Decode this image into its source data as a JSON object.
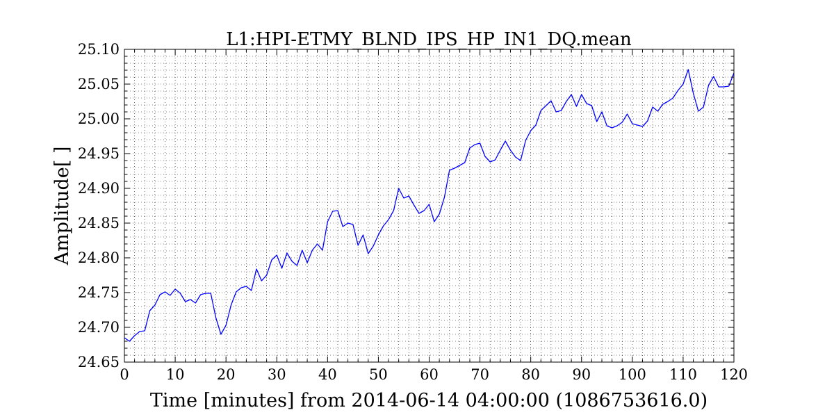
{
  "chart_data": {
    "type": "line",
    "title": "L1:HPI-ETMY_BLND_IPS_HP_IN1_DQ.mean",
    "xlabel": "Time [minutes] from 2014-06-14 04:00:00 (1086753616.0)",
    "ylabel": "Amplitude[ ]",
    "xlim": [
      0,
      120
    ],
    "ylim": [
      24.65,
      25.1
    ],
    "xticks": [
      "0",
      "10",
      "20",
      "30",
      "40",
      "50",
      "60",
      "70",
      "80",
      "90",
      "100",
      "110",
      "120"
    ],
    "yticks": [
      "24.65",
      "24.70",
      "24.75",
      "24.80",
      "24.85",
      "24.90",
      "24.95",
      "25.00",
      "25.05",
      "25.10"
    ],
    "grid": true,
    "line_color": "#0000ff",
    "series": [
      {
        "x": [
          0,
          1,
          2,
          3,
          4,
          5,
          6,
          7,
          8,
          9,
          10,
          11,
          12,
          13,
          14,
          15,
          16,
          17,
          18,
          19,
          20,
          21,
          22,
          23,
          24,
          25,
          26,
          27,
          28,
          29,
          30,
          31,
          32,
          33,
          34,
          35,
          36,
          37,
          38,
          39,
          40,
          41,
          42,
          43,
          44,
          45,
          46,
          47,
          48,
          49,
          50,
          51,
          52,
          53,
          54,
          55,
          56,
          57,
          58,
          59,
          60,
          61,
          62,
          63,
          64,
          65,
          66,
          67,
          68,
          69,
          70,
          71,
          72,
          73,
          74,
          75,
          76,
          77,
          78,
          79,
          80,
          81,
          82,
          83,
          84,
          85,
          86,
          87,
          88,
          89,
          90,
          91,
          92,
          93,
          94,
          95,
          96,
          97,
          98,
          99,
          100,
          101,
          102,
          103,
          104,
          105,
          106,
          107,
          108,
          109,
          110,
          111,
          112,
          113,
          114,
          115,
          116,
          117,
          118,
          119,
          120
        ],
        "y": [
          24.685,
          24.68,
          24.688,
          24.694,
          24.695,
          24.724,
          24.732,
          24.747,
          24.751,
          24.746,
          24.755,
          24.749,
          24.737,
          24.74,
          24.735,
          24.747,
          24.749,
          24.749,
          24.714,
          24.69,
          24.703,
          24.732,
          24.751,
          24.757,
          24.759,
          24.753,
          24.784,
          24.767,
          24.775,
          24.797,
          24.804,
          24.785,
          24.807,
          24.795,
          24.789,
          24.811,
          24.793,
          24.811,
          24.82,
          24.811,
          24.852,
          24.867,
          24.868,
          24.845,
          24.85,
          24.848,
          24.818,
          24.833,
          24.806,
          24.817,
          24.833,
          24.846,
          24.855,
          24.868,
          24.9,
          24.886,
          24.889,
          24.876,
          24.864,
          24.868,
          24.877,
          24.852,
          24.863,
          24.887,
          24.926,
          24.929,
          24.933,
          24.937,
          24.958,
          24.963,
          24.965,
          24.946,
          24.938,
          24.941,
          24.955,
          24.968,
          24.955,
          24.945,
          24.94,
          24.969,
          24.983,
          24.991,
          25.012,
          25.019,
          25.026,
          25.01,
          25.012,
          25.025,
          25.035,
          25.018,
          25.035,
          25.022,
          25.019,
          24.996,
          25.01,
          24.99,
          24.987,
          24.99,
          24.995,
          25.007,
          24.993,
          24.991,
          24.989,
          24.997,
          25.017,
          25.011,
          25.021,
          25.025,
          25.03,
          25.041,
          25.05,
          25.071,
          25.037,
          25.011,
          25.017,
          25.048,
          25.061,
          25.046,
          25.046,
          25.047,
          25.066
        ]
      }
    ]
  }
}
